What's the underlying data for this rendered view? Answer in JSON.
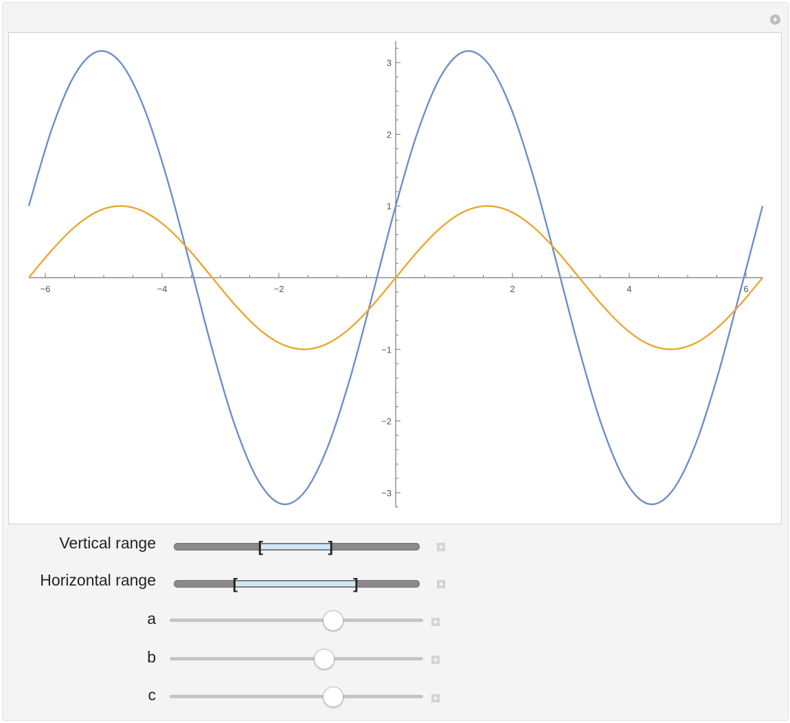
{
  "controls": {
    "vertical_range": {
      "label": "Vertical range",
      "selected": [
        0.353,
        0.639
      ]
    },
    "horizontal_range": {
      "label": "Horizontal range",
      "selected": [
        0.249,
        0.742
      ]
    },
    "a": {
      "label": "a",
      "value_fraction": 0.645
    },
    "b": {
      "label": "b",
      "value_fraction": 0.61
    },
    "c": {
      "label": "c",
      "value_fraction": 0.645
    },
    "plus_icon": "+"
  },
  "colors": {
    "series1": "#6a8fc8",
    "series2": "#eaa630",
    "accent": "#cfe7f7"
  },
  "chart_data": {
    "type": "line",
    "xlim": [
      -6.2832,
      6.2832
    ],
    "ylim": [
      -3.2,
      3.2
    ],
    "grid": false,
    "axes_origin": "center",
    "x_ticks": [
      "-6",
      "-4",
      "-2",
      "2",
      "4",
      "6"
    ],
    "y_ticks": [
      "3",
      "2",
      "1",
      "-1",
      "-2",
      "-3"
    ],
    "x": [
      -6.283,
      -5.89,
      -5.498,
      -5.105,
      -4.712,
      -4.32,
      -3.927,
      -3.534,
      -3.142,
      -2.749,
      -2.356,
      -1.963,
      -1.571,
      -1.178,
      -0.785,
      -0.393,
      0,
      0.393,
      0.785,
      1.178,
      1.571,
      1.963,
      2.356,
      2.749,
      3.142,
      3.534,
      3.927,
      4.32,
      4.712,
      5.105,
      5.498,
      5.89,
      6.283
    ],
    "series": [
      {
        "values": [
          1,
          2.072,
          2.828,
          3.155,
          3,
          2.389,
          1.414,
          0.224,
          -1,
          -2.072,
          -2.828,
          -3.155,
          -3,
          -2.389,
          -1.414,
          -0.224,
          1,
          2.072,
          2.828,
          3.155,
          3,
          2.389,
          1.414,
          0.224,
          -1,
          -2.072,
          -2.828,
          -3.155,
          -3,
          -2.389,
          -1.414,
          -0.224,
          1
        ]
      },
      {
        "values": [
          0,
          0.383,
          0.707,
          0.924,
          1,
          0.924,
          0.707,
          0.383,
          0,
          -0.383,
          -0.707,
          -0.924,
          -1,
          -0.924,
          -0.707,
          -0.383,
          0,
          0.383,
          0.707,
          0.924,
          1,
          0.924,
          0.707,
          0.383,
          0,
          -0.383,
          -0.707,
          -0.924,
          -1,
          -0.924,
          -0.707,
          -0.383,
          0
        ]
      }
    ]
  }
}
